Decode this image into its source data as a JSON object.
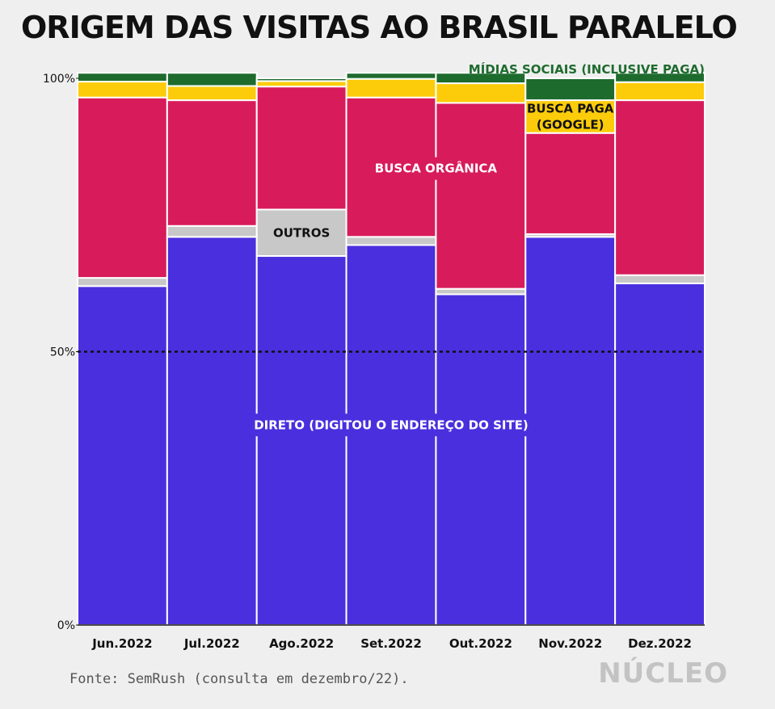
{
  "title": "ORIGEM DAS VISITAS AO BRASIL PARALELO",
  "source": "Fonte: SemRush (consulta em dezembro/22).",
  "brand": "NÚCLEO",
  "colors": {
    "direto": "#4a2fde",
    "outros": "#c8c8c8",
    "organica": "#d81b5b",
    "paga": "#fccc0a",
    "sociais": "#1e6b2e"
  },
  "chart_data": {
    "type": "bar",
    "stacked": true,
    "categories": [
      "Jun.2022",
      "Jul.2022",
      "Ago.2022",
      "Set.2022",
      "Out.2022",
      "Nov.2022",
      "Dez.2022"
    ],
    "series": [
      {
        "key": "direto",
        "name": "DIRETO (DIGITOU O ENDEREÇO DO SITE)",
        "values": [
          62.0,
          71.0,
          67.5,
          69.5,
          60.5,
          71.0,
          62.5
        ]
      },
      {
        "key": "outros",
        "name": "OUTROS",
        "values": [
          1.5,
          2.0,
          8.5,
          1.5,
          1.0,
          0.5,
          1.5
        ]
      },
      {
        "key": "organica",
        "name": "BUSCA ORGÂNICA",
        "values": [
          33.0,
          23.0,
          22.5,
          25.5,
          34.0,
          18.5,
          32.0
        ]
      },
      {
        "key": "paga",
        "name": "BUSCA PAGA (GOOGLE)",
        "values": [
          2.9,
          2.6,
          1.0,
          3.4,
          3.6,
          6.0,
          3.3
        ]
      },
      {
        "key": "sociais",
        "name": "MÍDIAS SOCIAIS (INCLUSIVE PAGA)",
        "values": [
          1.6,
          2.4,
          0.5,
          1.1,
          1.9,
          4.0,
          1.7
        ]
      }
    ],
    "yticks": [
      "0%",
      "50%",
      "100%"
    ],
    "ytick_values": [
      0,
      50,
      100
    ],
    "ylim": [
      0,
      100
    ],
    "reference_line": 50,
    "xlabel": "",
    "ylabel": ""
  }
}
